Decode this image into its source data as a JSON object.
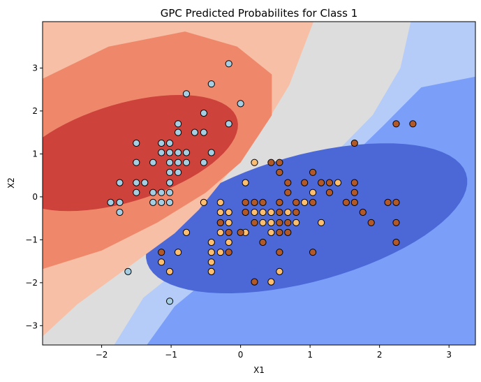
{
  "chart_data": {
    "type": "scatter",
    "title": "GPC Predicted Probabilites for Class 1",
    "xlabel": "X1",
    "ylabel": "X2",
    "xlim": [
      -2.85,
      3.38
    ],
    "ylim": [
      -3.45,
      4.08
    ],
    "xticks": [
      -2,
      -1,
      0,
      1,
      2,
      3
    ],
    "yticks": [
      -3,
      -2,
      -1,
      0,
      1,
      2,
      3
    ],
    "grid": false,
    "legend": "none",
    "background": {
      "kind": "filled-contour",
      "colormap": "coolwarm",
      "levels": [
        {
          "level": 1,
          "color": "#b4ccf7"
        },
        {
          "level": 2,
          "color": "#7b9ff9"
        },
        {
          "level": 3,
          "color": "#4c68d7"
        },
        {
          "level": 4,
          "color": "#dddddd"
        },
        {
          "level": 5,
          "color": "#f7bfa6"
        },
        {
          "level": 6,
          "color": "#ef886b"
        },
        {
          "level": 7,
          "color": "#cd423b"
        }
      ]
    },
    "series": [
      {
        "color": "#a6cee3",
        "points": [
          [
            -0.17,
            3.1
          ],
          [
            -0.42,
            2.63
          ],
          [
            0.0,
            2.17
          ],
          [
            -0.78,
            2.4
          ],
          [
            -0.53,
            1.95
          ],
          [
            -0.9,
            1.7
          ],
          [
            -0.17,
            1.7
          ],
          [
            -0.9,
            1.5
          ],
          [
            -0.66,
            1.5
          ],
          [
            -0.53,
            1.5
          ],
          [
            -1.5,
            1.25
          ],
          [
            -1.14,
            1.25
          ],
          [
            -1.02,
            1.25
          ],
          [
            -1.14,
            1.03
          ],
          [
            -1.02,
            1.03
          ],
          [
            -0.9,
            1.03
          ],
          [
            -0.78,
            1.03
          ],
          [
            -0.42,
            1.03
          ],
          [
            -1.5,
            0.8
          ],
          [
            -1.26,
            0.8
          ],
          [
            -1.02,
            0.8
          ],
          [
            -0.9,
            0.8
          ],
          [
            -0.78,
            0.8
          ],
          [
            -0.53,
            0.8
          ],
          [
            -1.02,
            0.57
          ],
          [
            -0.9,
            0.57
          ],
          [
            -1.74,
            0.33
          ],
          [
            -1.5,
            0.33
          ],
          [
            -1.38,
            0.33
          ],
          [
            -1.02,
            0.33
          ],
          [
            -1.5,
            0.1
          ],
          [
            -1.26,
            0.1
          ],
          [
            -1.14,
            0.1
          ],
          [
            -1.02,
            0.1
          ],
          [
            -1.87,
            -0.13
          ],
          [
            -1.74,
            -0.13
          ],
          [
            -1.26,
            -0.13
          ],
          [
            -1.14,
            -0.13
          ],
          [
            -1.02,
            -0.13
          ],
          [
            -1.74,
            -0.36
          ],
          [
            -1.62,
            -1.74
          ],
          [
            -1.02,
            -2.43
          ]
        ]
      },
      {
        "color": "#fdbf6f",
        "points": [
          [
            0.2,
            0.8
          ],
          [
            0.07,
            0.33
          ],
          [
            -0.53,
            -0.13
          ],
          [
            -0.29,
            -0.13
          ],
          [
            -0.29,
            -0.36
          ],
          [
            -0.17,
            -0.36
          ],
          [
            0.2,
            -0.36
          ],
          [
            0.32,
            -0.36
          ],
          [
            0.44,
            -0.36
          ],
          [
            0.68,
            -0.36
          ],
          [
            -0.29,
            -0.6
          ],
          [
            -0.17,
            -0.6
          ],
          [
            0.32,
            -0.6
          ],
          [
            0.44,
            -0.6
          ],
          [
            0.8,
            -0.6
          ],
          [
            1.16,
            -0.6
          ],
          [
            -0.29,
            -0.83
          ],
          [
            0.07,
            -0.83
          ],
          [
            0.44,
            -0.83
          ],
          [
            -0.42,
            -1.06
          ],
          [
            -0.17,
            -1.06
          ],
          [
            -0.42,
            -1.29
          ],
          [
            -0.29,
            -1.29
          ],
          [
            -0.9,
            -1.29
          ],
          [
            -0.42,
            -1.52
          ],
          [
            -1.14,
            -1.52
          ],
          [
            -0.42,
            -1.74
          ],
          [
            0.56,
            -1.74
          ],
          [
            -1.02,
            -1.74
          ],
          [
            0.44,
            -1.98
          ],
          [
            -0.78,
            -0.83
          ],
          [
            1.4,
            0.33
          ],
          [
            1.04,
            0.1
          ],
          [
            0.92,
            -0.13
          ]
        ]
      },
      {
        "color": "#b15928",
        "points": [
          [
            2.24,
            1.7
          ],
          [
            2.48,
            1.7
          ],
          [
            1.64,
            1.25
          ],
          [
            0.44,
            0.8
          ],
          [
            0.56,
            0.8
          ],
          [
            0.56,
            0.57
          ],
          [
            1.04,
            0.57
          ],
          [
            0.68,
            0.33
          ],
          [
            0.92,
            0.33
          ],
          [
            1.16,
            0.33
          ],
          [
            1.28,
            0.33
          ],
          [
            1.64,
            0.33
          ],
          [
            0.68,
            0.1
          ],
          [
            1.28,
            0.1
          ],
          [
            1.64,
            0.1
          ],
          [
            0.07,
            -0.13
          ],
          [
            0.2,
            -0.13
          ],
          [
            0.32,
            -0.13
          ],
          [
            0.56,
            -0.13
          ],
          [
            0.8,
            -0.13
          ],
          [
            1.04,
            -0.13
          ],
          [
            1.52,
            -0.13
          ],
          [
            1.64,
            -0.13
          ],
          [
            2.12,
            -0.13
          ],
          [
            2.24,
            -0.13
          ],
          [
            0.07,
            -0.36
          ],
          [
            0.56,
            -0.36
          ],
          [
            0.8,
            -0.36
          ],
          [
            1.76,
            -0.36
          ],
          [
            -0.29,
            -0.6
          ],
          [
            0.2,
            -0.6
          ],
          [
            0.56,
            -0.6
          ],
          [
            0.68,
            -0.6
          ],
          [
            1.88,
            -0.6
          ],
          [
            2.24,
            -0.6
          ],
          [
            -0.17,
            -0.83
          ],
          [
            0.0,
            -0.83
          ],
          [
            0.56,
            -0.83
          ],
          [
            0.68,
            -0.83
          ],
          [
            0.32,
            -1.06
          ],
          [
            2.24,
            -1.06
          ],
          [
            -0.17,
            -1.29
          ],
          [
            0.56,
            -1.29
          ],
          [
            1.04,
            -1.29
          ],
          [
            -1.14,
            -1.29
          ],
          [
            0.2,
            -1.98
          ]
        ]
      }
    ]
  }
}
